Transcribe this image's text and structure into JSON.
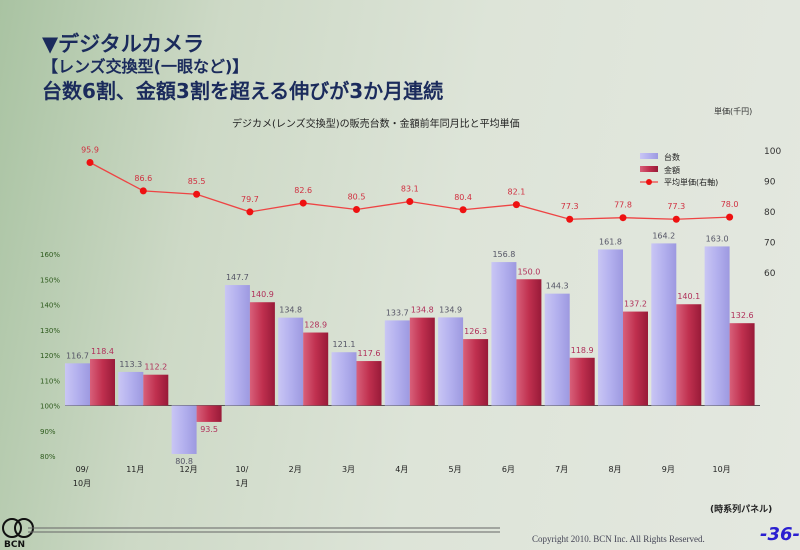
{
  "slide": {
    "heading": "▼デジタルカメラ",
    "subheading": "【レンズ交換型(一眼など)】",
    "headline": "台数6割、金額3割を超える伸びが3か月連続",
    "panel_note": "(時系列パネル)",
    "copyright": "Copyright 2010. BCN Inc. All Rights Reserved.",
    "page_number": "-36-",
    "logo_text": "BCN"
  },
  "chart_data": {
    "type": "bar",
    "title": "デジカメ(レンズ交換型)の販売台数・金額前年同月比と平均単価",
    "right_axis_unit": "単価(千円)",
    "categories": [
      "09/\n10月",
      "11月",
      "12月",
      "10/\n1月",
      "2月",
      "3月",
      "4月",
      "5月",
      "6月",
      "7月",
      "8月",
      "9月",
      "10月"
    ],
    "left_axis": {
      "ticks": [
        "80%",
        "90%",
        "100%",
        "110%",
        "120%",
        "130%",
        "140%",
        "150%",
        "160%"
      ],
      "ylim": [
        80,
        160
      ],
      "baseline": 100
    },
    "right_axis": {
      "ticks": [
        "60",
        "70",
        "80",
        "90",
        "100"
      ],
      "ylim": [
        60,
        100
      ]
    },
    "series": [
      {
        "name": "台数",
        "type": "bar",
        "color": "#a9a6e8",
        "values": [
          116.7,
          113.3,
          80.8,
          147.7,
          134.8,
          121.1,
          133.7,
          134.9,
          156.8,
          144.3,
          161.8,
          164.2,
          163.0
        ],
        "labels": [
          "116.7",
          "113.3",
          "80.8",
          "147.7",
          "134.8",
          "121.1",
          "133.7",
          "134.9",
          "156.8",
          "144.3",
          "161.8",
          "164.2",
          "163.0"
        ]
      },
      {
        "name": "金額",
        "type": "bar",
        "color": "#c0304f",
        "values": [
          118.4,
          112.2,
          93.5,
          140.9,
          128.9,
          117.6,
          134.8,
          126.3,
          150.0,
          118.9,
          137.2,
          140.1,
          132.6
        ],
        "labels": [
          "118.4",
          "112.2",
          "93.5",
          "140.9",
          "128.9",
          "117.6",
          "134.8",
          "126.3",
          "150.0",
          "118.9",
          "137.2",
          "140.1",
          "132.6"
        ]
      },
      {
        "name": "平均単価(右軸)",
        "type": "line",
        "axis": "right",
        "color": "#ee1111",
        "values": [
          95.9,
          86.6,
          85.5,
          79.7,
          82.6,
          80.5,
          83.1,
          80.4,
          82.1,
          77.3,
          77.8,
          77.3,
          78.0
        ],
        "labels": [
          "95.9",
          "86.6",
          "85.5",
          "79.7",
          "82.6",
          "80.5",
          "83.1",
          "80.4",
          "82.1",
          "77.3",
          "77.8",
          "77.3",
          "78.0"
        ]
      }
    ],
    "legend": "top-right",
    "grid": false
  }
}
